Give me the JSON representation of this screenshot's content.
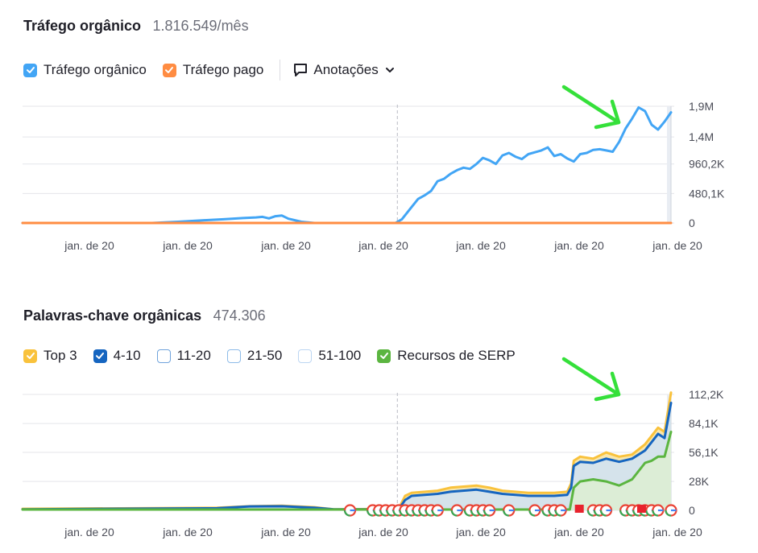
{
  "chart_data": [
    {
      "type": "line",
      "title": "Tráfego orgânico",
      "metric": "1.816.549/mês",
      "legend": [
        {
          "name": "Tráfego orgânico",
          "color": "#42a5f5",
          "checked": true
        },
        {
          "name": "Tráfego pago",
          "color": "#ff8c42",
          "checked": true
        }
      ],
      "annotations_label": "Anotações",
      "y_ticks": [
        "1,9M",
        "1,4M",
        "960,2K",
        "480,1K",
        "0"
      ],
      "y_tick_values": [
        1900000,
        1400000,
        960200,
        480100,
        0
      ],
      "ylim": [
        0,
        1900000
      ],
      "x_ticks": [
        "jan. de 20",
        "jan. de 20",
        "jan. de 20",
        "jan. de 20",
        "jan. de 20",
        "jan. de 20",
        "jan. de 20"
      ],
      "xlim": [
        0,
        100
      ],
      "grid": true,
      "divider_x": 57.8,
      "series": [
        {
          "name": "Tráfego orgânico",
          "color": "#42a5f5",
          "points": [
            [
              0,
              0
            ],
            [
              20,
              0
            ],
            [
              24,
              20000
            ],
            [
              28,
              45000
            ],
            [
              31,
              60000
            ],
            [
              34,
              80000
            ],
            [
              36,
              90000
            ],
            [
              37,
              100000
            ],
            [
              38,
              75000
            ],
            [
              39,
              110000
            ],
            [
              40,
              120000
            ],
            [
              41,
              70000
            ],
            [
              43,
              20000
            ],
            [
              45,
              0
            ],
            [
              57.5,
              0
            ],
            [
              58.5,
              60000
            ],
            [
              60,
              260000
            ],
            [
              61,
              390000
            ],
            [
              62,
              450000
            ],
            [
              63,
              520000
            ],
            [
              64,
              680000
            ],
            [
              65,
              720000
            ],
            [
              66,
              800000
            ],
            [
              67,
              860000
            ],
            [
              68,
              900000
            ],
            [
              69,
              880000
            ],
            [
              70,
              960000
            ],
            [
              71,
              1060000
            ],
            [
              72,
              1020000
            ],
            [
              73,
              960000
            ],
            [
              74,
              1100000
            ],
            [
              75,
              1140000
            ],
            [
              76,
              1080000
            ],
            [
              77,
              1040000
            ],
            [
              78,
              1120000
            ],
            [
              79,
              1150000
            ],
            [
              80,
              1180000
            ],
            [
              81,
              1230000
            ],
            [
              82,
              1090000
            ],
            [
              83,
              1120000
            ],
            [
              84,
              1050000
            ],
            [
              85,
              1000000
            ],
            [
              86,
              1120000
            ],
            [
              87,
              1140000
            ],
            [
              88,
              1190000
            ],
            [
              89,
              1200000
            ],
            [
              90,
              1180000
            ],
            [
              91,
              1160000
            ],
            [
              92,
              1320000
            ],
            [
              93,
              1540000
            ],
            [
              94,
              1700000
            ],
            [
              95,
              1880000
            ],
            [
              96,
              1820000
            ],
            [
              97,
              1600000
            ],
            [
              98,
              1520000
            ],
            [
              99,
              1650000
            ],
            [
              100,
              1800000
            ]
          ]
        },
        {
          "name": "Tráfego pago",
          "color": "#ff8c42",
          "points": [
            [
              0,
              0
            ],
            [
              100,
              0
            ]
          ]
        }
      ]
    },
    {
      "type": "area",
      "title": "Palavras-chave orgânicas",
      "metric": "474.306",
      "legend": [
        {
          "name": "Top 3",
          "color": "#f9c23c",
          "checked": true
        },
        {
          "name": "4-10",
          "color": "#1565c0",
          "checked": true
        },
        {
          "name": "11-20",
          "color": "#8fb8e8",
          "checked": false
        },
        {
          "name": "21-50",
          "color": "#a9cbee",
          "checked": false
        },
        {
          "name": "51-100",
          "color": "#c7dcf4",
          "checked": false
        },
        {
          "name": "Recursos de SERP",
          "color": "#5bb540",
          "checked": true
        }
      ],
      "y_ticks": [
        "112,2K",
        "84,1K",
        "56,1K",
        "28K",
        "0"
      ],
      "y_tick_values": [
        112200,
        84100,
        56100,
        28000,
        0
      ],
      "ylim": [
        0,
        112200
      ],
      "x_ticks": [
        "jan. de 20",
        "jan. de 20",
        "jan. de 20",
        "jan. de 20",
        "jan. de 20",
        "jan. de 20",
        "jan. de 20"
      ],
      "xlim": [
        0,
        100
      ],
      "grid": true,
      "divider_x": 57.8,
      "serp_marker_x": [
        50.5,
        54,
        55,
        56,
        57,
        58,
        59,
        60,
        61,
        62,
        63,
        64,
        67,
        69,
        70,
        71,
        72,
        75,
        79,
        81,
        82,
        83,
        88,
        89,
        90,
        93,
        94,
        95,
        96,
        97,
        98,
        100
      ],
      "flag_marker_x": [
        85.8,
        95.4
      ],
      "series": [
        {
          "name": "Top 3",
          "color": "#f9c23c",
          "points": [
            [
              0,
              1500
            ],
            [
              30,
              2500
            ],
            [
              35,
              4000
            ],
            [
              40,
              4500
            ],
            [
              45,
              3000
            ],
            [
              48,
              1000
            ],
            [
              58,
              1500
            ],
            [
              59,
              14000
            ],
            [
              60,
              17000
            ],
            [
              64,
              19000
            ],
            [
              66,
              22000
            ],
            [
              70,
              24000
            ],
            [
              72,
              22000
            ],
            [
              74,
              19000
            ],
            [
              78,
              17000
            ],
            [
              82,
              17000
            ],
            [
              84,
              18000
            ],
            [
              84.6,
              26000
            ],
            [
              85,
              48000
            ],
            [
              86,
              52000
            ],
            [
              88,
              50000
            ],
            [
              90,
              56000
            ],
            [
              92,
              52000
            ],
            [
              94,
              54000
            ],
            [
              96,
              64000
            ],
            [
              97,
              72000
            ],
            [
              98,
              80000
            ],
            [
              99,
              76000
            ],
            [
              100,
              114000
            ]
          ]
        },
        {
          "name": "4-10",
          "color": "#1565c0",
          "points": [
            [
              0,
              1000
            ],
            [
              30,
              2000
            ],
            [
              35,
              3800
            ],
            [
              40,
              4000
            ],
            [
              45,
              2500
            ],
            [
              48,
              900
            ],
            [
              58,
              1000
            ],
            [
              59,
              10000
            ],
            [
              60,
              14000
            ],
            [
              64,
              16000
            ],
            [
              66,
              18000
            ],
            [
              70,
              20000
            ],
            [
              72,
              18000
            ],
            [
              74,
              16000
            ],
            [
              78,
              14000
            ],
            [
              82,
              14000
            ],
            [
              84,
              15000
            ],
            [
              84.6,
              22000
            ],
            [
              85,
              43000
            ],
            [
              86,
              47000
            ],
            [
              88,
              46000
            ],
            [
              90,
              50000
            ],
            [
              92,
              47000
            ],
            [
              94,
              50000
            ],
            [
              96,
              58000
            ],
            [
              97,
              66000
            ],
            [
              98,
              74000
            ],
            [
              99,
              70000
            ],
            [
              100,
              104000
            ]
          ]
        },
        {
          "name": "Recursos de SERP",
          "color": "#5bb540",
          "points": [
            [
              0,
              800
            ],
            [
              48,
              800
            ],
            [
              58,
              800
            ],
            [
              84.4,
              800
            ],
            [
              85,
              22000
            ],
            [
              86,
              28000
            ],
            [
              88,
              30000
            ],
            [
              90,
              28000
            ],
            [
              92,
              24000
            ],
            [
              94,
              30000
            ],
            [
              96,
              46000
            ],
            [
              97,
              48000
            ],
            [
              98,
              52000
            ],
            [
              99,
              52000
            ],
            [
              100,
              76000
            ]
          ]
        }
      ]
    }
  ]
}
